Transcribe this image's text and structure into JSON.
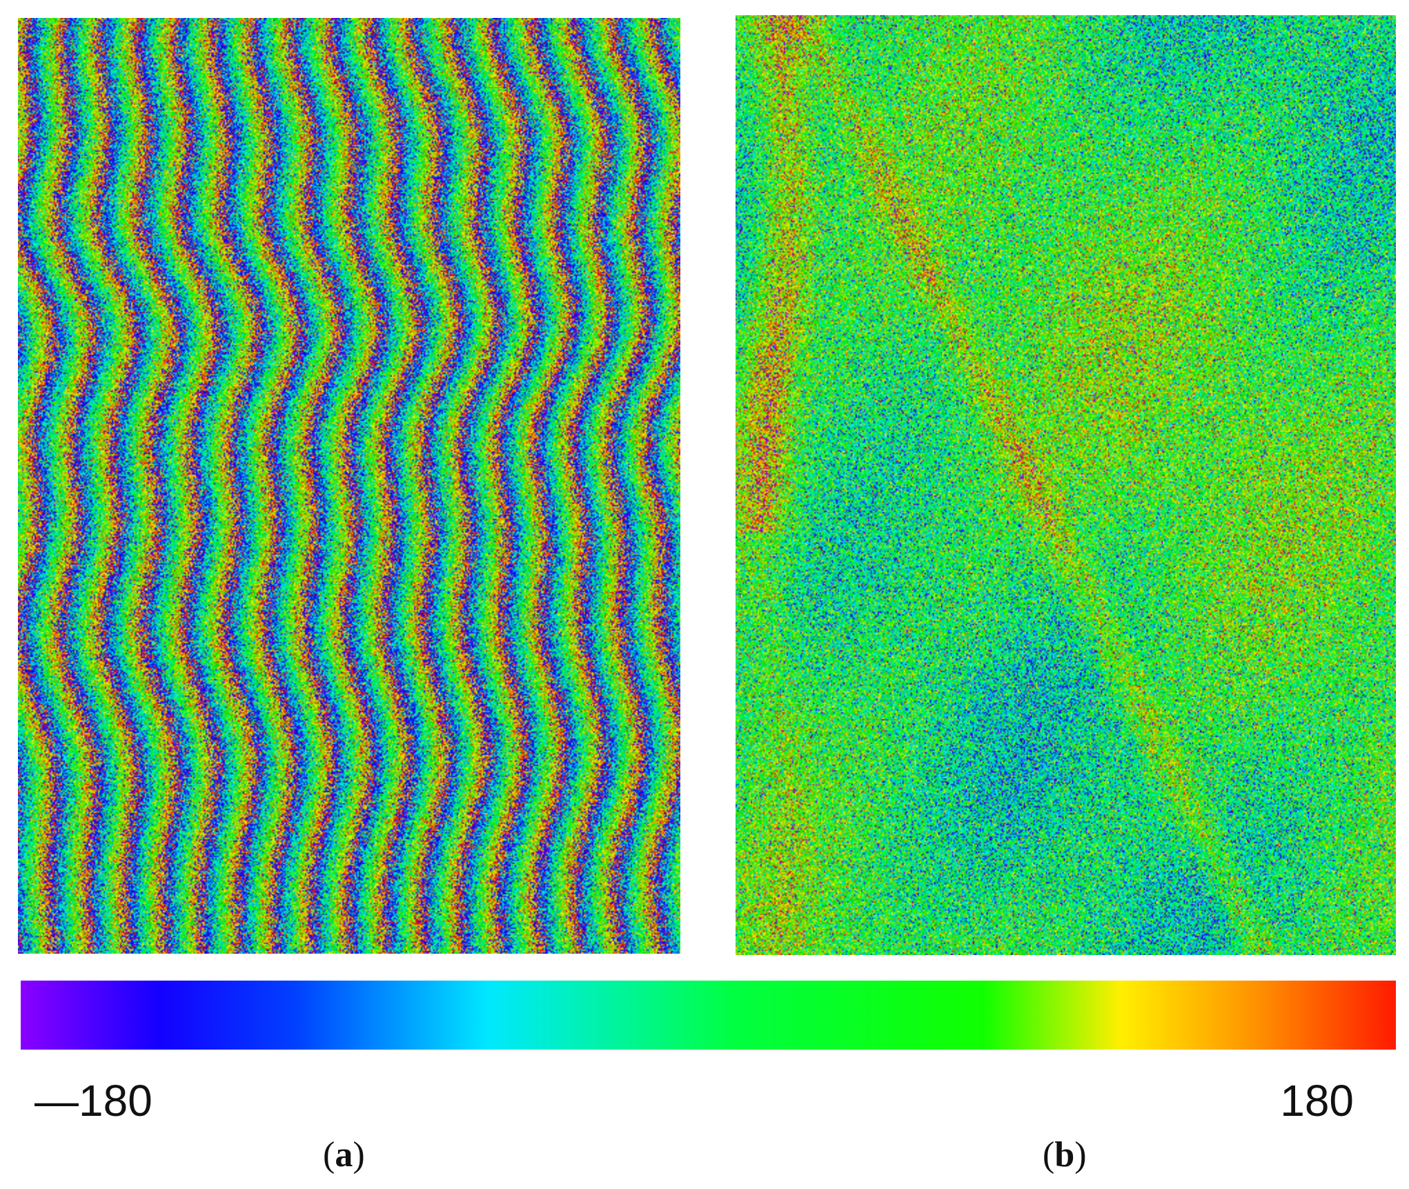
{
  "panels": [
    {
      "id": "a",
      "pattern": "dense vertical interferometric fringes"
    },
    {
      "id": "b",
      "pattern": "low-frequency phase, mostly green/cyan with orange-red streaks"
    }
  ],
  "colorbar": {
    "min_label": "—180",
    "max_label": "180",
    "colors": [
      "#8a00ff",
      "#0010ff",
      "#00e8ff",
      "#00ff10",
      "#ffef00",
      "#ff1a00"
    ]
  },
  "captions": {
    "a": {
      "open": "(",
      "letter": "a",
      "close": ")"
    },
    "b": {
      "open": "(",
      "letter": "b",
      "close": ")"
    }
  }
}
